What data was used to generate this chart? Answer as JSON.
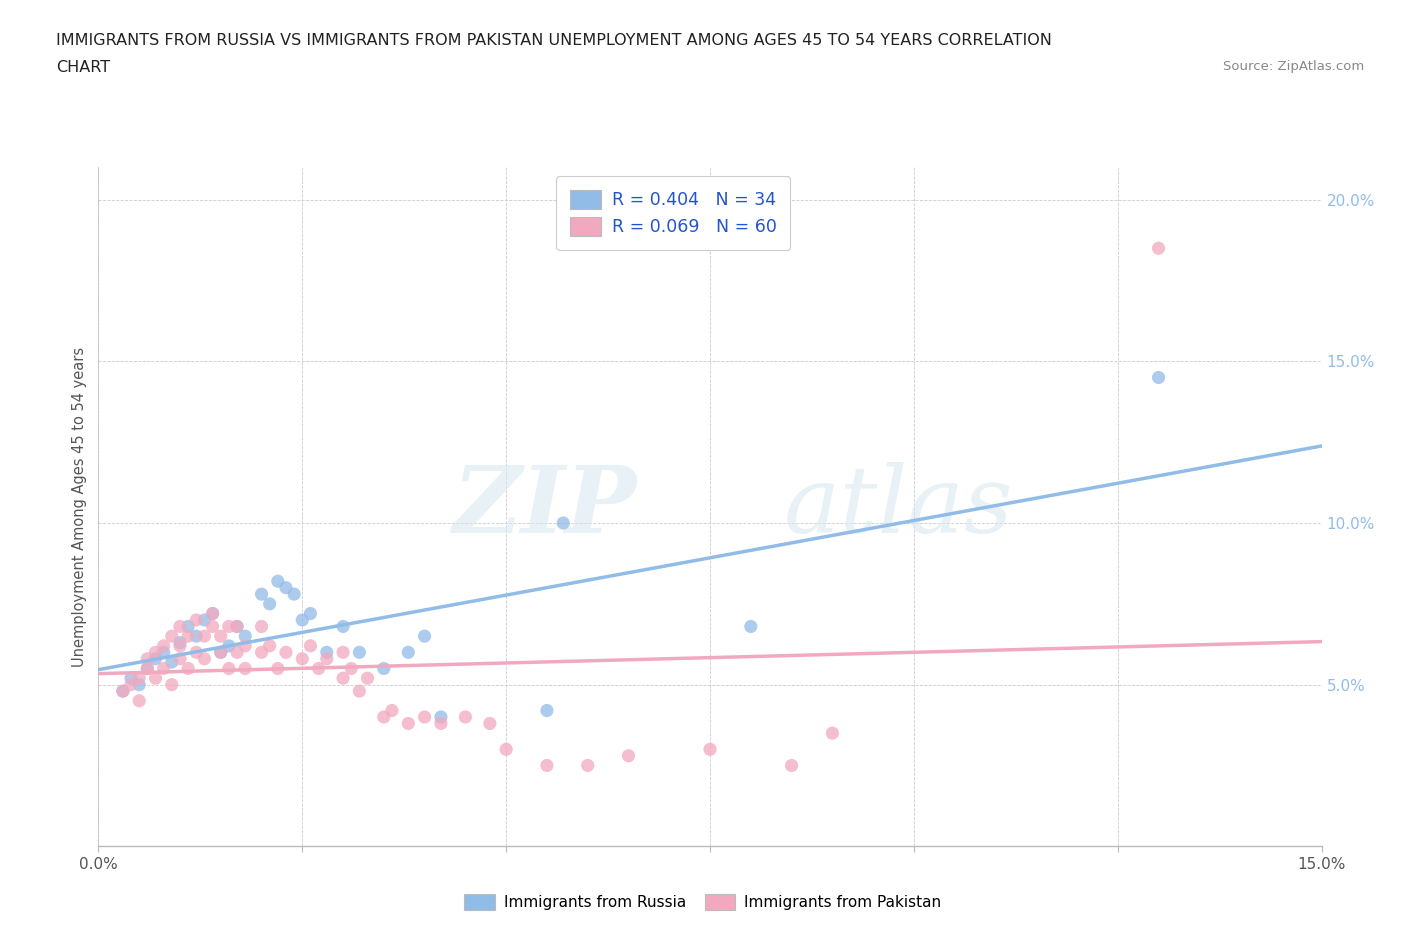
{
  "title_line1": "IMMIGRANTS FROM RUSSIA VS IMMIGRANTS FROM PAKISTAN UNEMPLOYMENT AMONG AGES 45 TO 54 YEARS CORRELATION",
  "title_line2": "CHART",
  "source": "Source: ZipAtlas.com",
  "ylabel": "Unemployment Among Ages 45 to 54 years",
  "xlim": [
    0.0,
    0.15
  ],
  "ylim": [
    0.0,
    0.21
  ],
  "xticks": [
    0.0,
    0.025,
    0.05,
    0.075,
    0.1,
    0.125,
    0.15
  ],
  "xtick_labels": [
    "0.0%",
    "",
    "",
    "",
    "",
    "",
    "15.0%"
  ],
  "ytick_positions": [
    0.05,
    0.1,
    0.15,
    0.2
  ],
  "ytick_labels": [
    "5.0%",
    "10.0%",
    "15.0%",
    "20.0%"
  ],
  "legend_russia": "R = 0.404   N = 34",
  "legend_pakistan": "R = 0.069   N = 60",
  "color_russia": "#92bce8",
  "color_pakistan": "#f2a8be",
  "watermark_zip": "ZIP",
  "watermark_atlas": "atlas",
  "russia_x": [
    0.003,
    0.004,
    0.005,
    0.006,
    0.007,
    0.008,
    0.009,
    0.01,
    0.011,
    0.012,
    0.013,
    0.014,
    0.015,
    0.016,
    0.017,
    0.018,
    0.02,
    0.021,
    0.022,
    0.023,
    0.024,
    0.025,
    0.026,
    0.028,
    0.03,
    0.032,
    0.035,
    0.038,
    0.04,
    0.042,
    0.055,
    0.057,
    0.08,
    0.13
  ],
  "russia_y": [
    0.048,
    0.052,
    0.05,
    0.055,
    0.058,
    0.06,
    0.057,
    0.063,
    0.068,
    0.065,
    0.07,
    0.072,
    0.06,
    0.062,
    0.068,
    0.065,
    0.078,
    0.075,
    0.082,
    0.08,
    0.078,
    0.07,
    0.072,
    0.06,
    0.068,
    0.06,
    0.055,
    0.06,
    0.065,
    0.04,
    0.042,
    0.1,
    0.068,
    0.145
  ],
  "pakistan_x": [
    0.003,
    0.004,
    0.005,
    0.005,
    0.006,
    0.006,
    0.007,
    0.007,
    0.008,
    0.008,
    0.009,
    0.009,
    0.01,
    0.01,
    0.01,
    0.011,
    0.011,
    0.012,
    0.012,
    0.013,
    0.013,
    0.014,
    0.014,
    0.015,
    0.015,
    0.016,
    0.016,
    0.017,
    0.017,
    0.018,
    0.018,
    0.02,
    0.02,
    0.021,
    0.022,
    0.023,
    0.025,
    0.026,
    0.027,
    0.028,
    0.03,
    0.03,
    0.031,
    0.032,
    0.033,
    0.035,
    0.036,
    0.038,
    0.04,
    0.042,
    0.045,
    0.048,
    0.05,
    0.055,
    0.06,
    0.065,
    0.075,
    0.085,
    0.09,
    0.13
  ],
  "pakistan_y": [
    0.048,
    0.05,
    0.045,
    0.052,
    0.055,
    0.058,
    0.052,
    0.06,
    0.055,
    0.062,
    0.05,
    0.065,
    0.058,
    0.062,
    0.068,
    0.055,
    0.065,
    0.06,
    0.07,
    0.058,
    0.065,
    0.068,
    0.072,
    0.06,
    0.065,
    0.055,
    0.068,
    0.06,
    0.068,
    0.055,
    0.062,
    0.06,
    0.068,
    0.062,
    0.055,
    0.06,
    0.058,
    0.062,
    0.055,
    0.058,
    0.052,
    0.06,
    0.055,
    0.048,
    0.052,
    0.04,
    0.042,
    0.038,
    0.04,
    0.038,
    0.04,
    0.038,
    0.03,
    0.025,
    0.025,
    0.028,
    0.03,
    0.025,
    0.035,
    0.185
  ]
}
